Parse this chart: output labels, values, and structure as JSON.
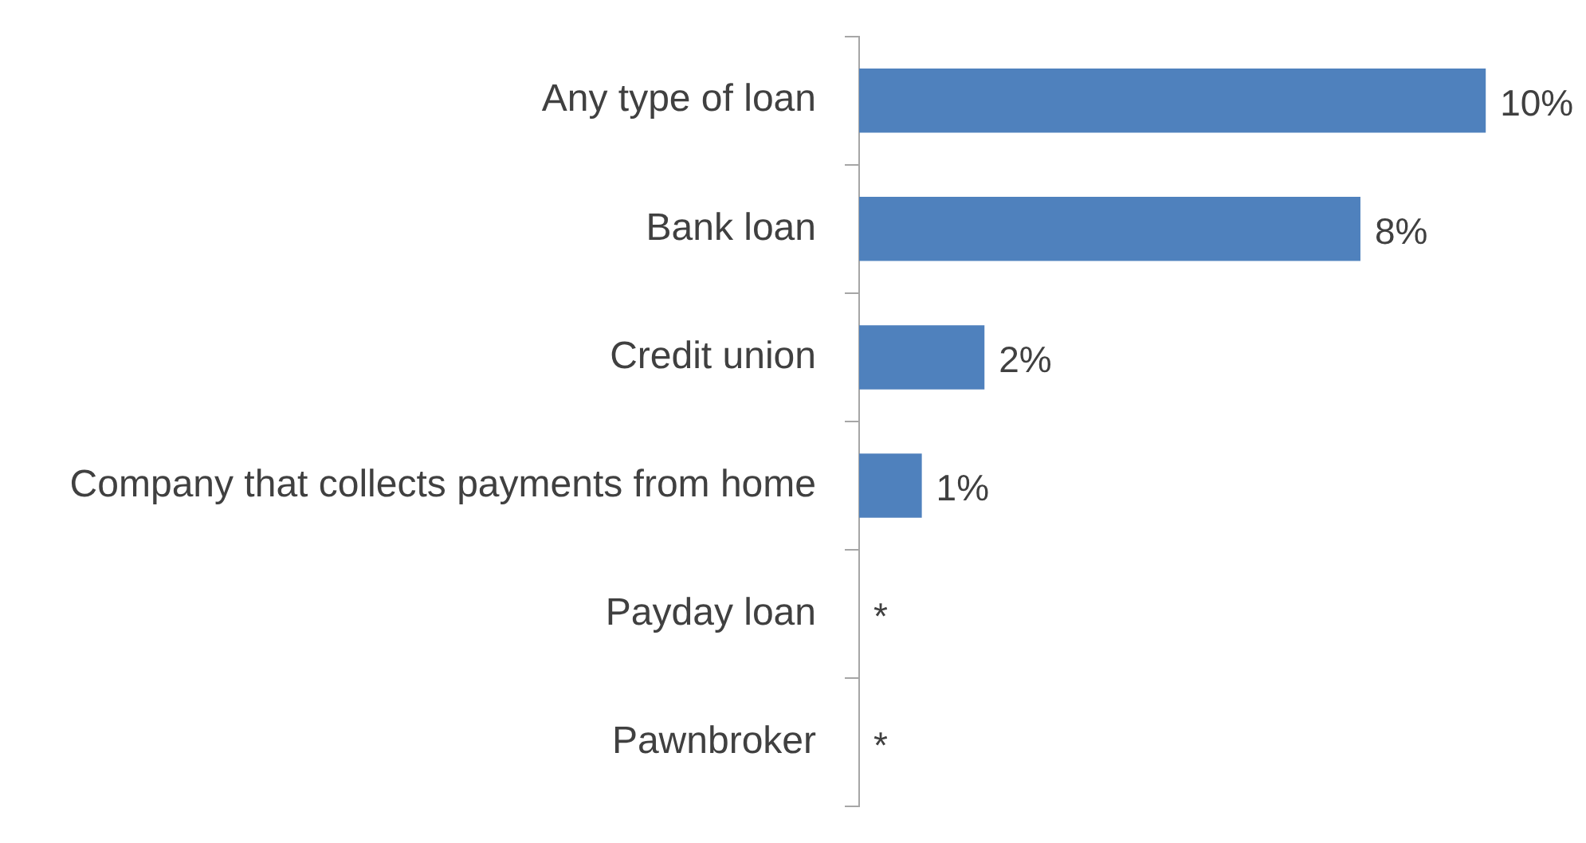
{
  "chart_data": {
    "type": "bar",
    "orientation": "horizontal",
    "categories": [
      "Any type of loan",
      "Bank loan",
      "Credit union",
      "Company that collects payments from home",
      "Payday loan",
      "Pawnbroker"
    ],
    "values": [
      10,
      8,
      2,
      1,
      null,
      null
    ],
    "value_labels": [
      "10%",
      "8%",
      "2%",
      "1%",
      "*",
      "*"
    ],
    "color": "#4f81bd"
  }
}
